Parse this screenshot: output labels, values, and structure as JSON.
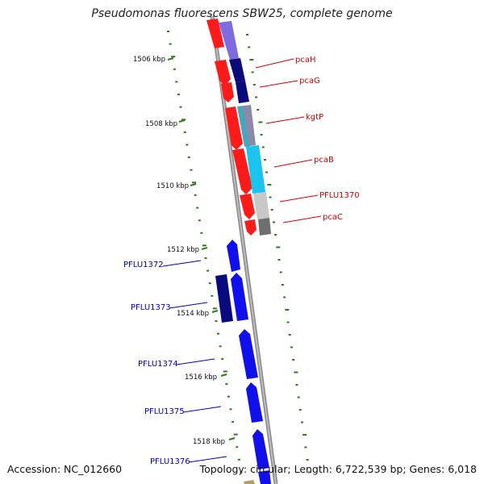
{
  "title": "Pseudomonas fluorescens SBW25, complete genome",
  "footer": {
    "accession": "Accession: NC_012660",
    "summary": "Topology: circular; Length: 6,722,539 bp; Genes: 6,018"
  },
  "colors": {
    "backbone": "#8f8f8f",
    "tick": "#2e7d1b",
    "forward_gene": "#ff1a1a",
    "reverse_gene": "#1010ee",
    "label_upper": "#dd0000",
    "label_lower": "#0000cc"
  },
  "scale_labels": [
    "1506 kbp",
    "1508 kbp",
    "1510 kbp",
    "1512 kbp",
    "1514 kbp",
    "1516 kbp",
    "1518 kbp"
  ],
  "gene_labels_right": [
    "pcaH",
    "pcaG",
    "kgtP",
    "pcaB",
    "PFLU1370",
    "pcaC"
  ],
  "gene_labels_left": [
    "PFLU1372",
    "PFLU1373",
    "PFLU1374",
    "PFLU1375",
    "PFLU1376"
  ]
}
